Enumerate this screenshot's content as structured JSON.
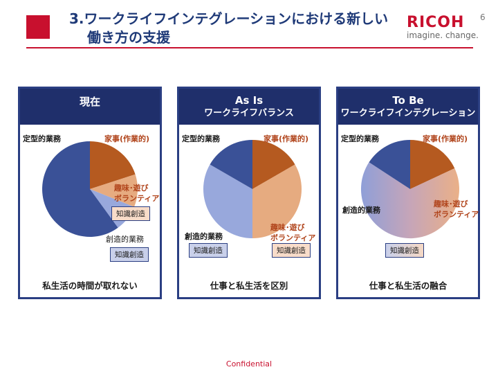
{
  "header": {
    "title_line1": "3.ワークライフインテグレーションにおける新しい",
    "title_line2": "働き方の支援",
    "brand": "RICOH",
    "tagline": "imagine. change.",
    "page_number": "6"
  },
  "colors": {
    "brand_red": "#c8102e",
    "navy": "#1f2f6b",
    "rust": "#b55a20",
    "peach": "#e6ab80",
    "dark_blue": "#3a5197",
    "light_blue": "#98a8dc"
  },
  "panels": [
    {
      "heading1": "現在",
      "heading2": "",
      "labels": {
        "teikei": "定型的業務",
        "kaji": "家事(作業的)",
        "shumi": "趣味･遊び\nボランティア",
        "chishiki_chip1": "知識創造",
        "souzou": "創造的業務",
        "chishiki_chip2": "知識創造"
      },
      "slices": [
        {
          "name": "家事(作業的)",
          "share": 0.2
        },
        {
          "name": "趣味･遊び ボランティア",
          "share": 0.11
        },
        {
          "name": "創造的業務",
          "share": 0.09
        },
        {
          "name": "定型的業務",
          "share": 0.6
        }
      ],
      "footer": "私生活の時間が取れない"
    },
    {
      "heading1": "As Is",
      "heading2": "ワークライフバランス",
      "labels": {
        "teikei": "定型的業務",
        "kaji": "家事(作業的)",
        "souzou": "創造的業務",
        "shumi": "趣味･遊び\nボランティア",
        "chishiki_chip1": "知識創造",
        "chishiki_chip2": "知識創造"
      },
      "slices": [
        {
          "name": "家事(作業的)",
          "share": 0.17
        },
        {
          "name": "趣味･遊び ボランティア",
          "share": 0.33
        },
        {
          "name": "創造的業務",
          "share": 0.33
        },
        {
          "name": "定型的業務",
          "share": 0.17
        }
      ],
      "footer": "仕事と私生活を区別"
    },
    {
      "heading1": "To Be",
      "heading2": "ワークライフインテグレーション",
      "labels": {
        "teikei": "定型的業務",
        "kaji": "家事(作業的)",
        "souzou": "創造的業務",
        "shumi": "趣味･遊び\nボランティア",
        "chishiki_chip": "知識創造"
      },
      "slices": [
        {
          "name": "家事(作業的)",
          "share": 0.18
        },
        {
          "name": "創造的業務 / 趣味･遊び ボランティア",
          "share": 0.66
        },
        {
          "name": "定型的業務",
          "share": 0.16
        }
      ],
      "footer": "仕事と私生活の融合"
    }
  ],
  "confidential": "Confidential"
}
